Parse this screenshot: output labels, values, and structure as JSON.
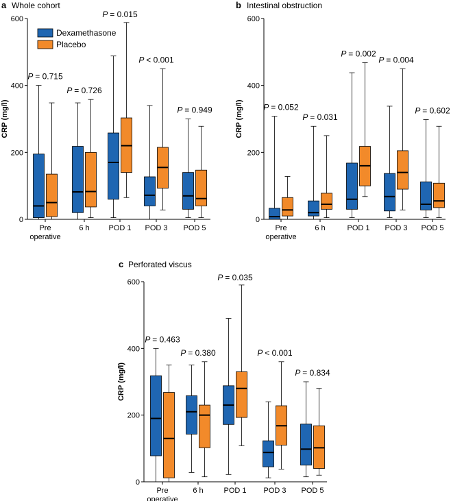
{
  "chart_data": [
    {
      "type": "boxplot",
      "panel_label": "a",
      "title": "Whole cohort",
      "ylabel": "CRP (mg/l)",
      "ylim": [
        0,
        600
      ],
      "yticks": [
        "0",
        "200",
        "400",
        "600"
      ],
      "categories": [
        "Pre operative",
        "6 h",
        "POD 1",
        "POD 3",
        "POD 5"
      ],
      "category_lines": [
        [
          "Pre",
          "operative"
        ],
        [
          "6 h"
        ],
        [
          "POD 1"
        ],
        [
          "POD 3"
        ],
        [
          "POD 5"
        ]
      ],
      "legend": [
        "Dexamethasone",
        "Placebo"
      ],
      "p_prefix": "P",
      "p_values": [
        "= 0.715",
        "= 0.726",
        "= 0.015",
        "< 0.001",
        "= 0.949"
      ],
      "series": [
        {
          "name": "Dexamethasone",
          "color": "#1f66b2",
          "boxes": [
            {
              "min": 0,
              "q1": 5,
              "median": 40,
              "q3": 195,
              "max": 400
            },
            {
              "min": 0,
              "q1": 20,
              "median": 82,
              "q3": 218,
              "max": 348
            },
            {
              "min": 5,
              "q1": 60,
              "median": 170,
              "q3": 258,
              "max": 488
            },
            {
              "min": 0,
              "q1": 40,
              "median": 72,
              "q3": 127,
              "max": 340
            },
            {
              "min": 5,
              "q1": 30,
              "median": 70,
              "q3": 140,
              "max": 300
            }
          ]
        },
        {
          "name": "Placebo",
          "color": "#f28a2a",
          "boxes": [
            {
              "min": 0,
              "q1": 8,
              "median": 50,
              "q3": 135,
              "max": 348
            },
            {
              "min": 5,
              "q1": 37,
              "median": 83,
              "q3": 200,
              "max": 358
            },
            {
              "min": 65,
              "q1": 140,
              "median": 220,
              "q3": 303,
              "max": 588
            },
            {
              "min": 28,
              "q1": 93,
              "median": 155,
              "q3": 215,
              "max": 450
            },
            {
              "min": 5,
              "q1": 40,
              "median": 62,
              "q3": 147,
              "max": 278
            }
          ]
        }
      ]
    },
    {
      "type": "boxplot",
      "panel_label": "b",
      "title": "Intestinal obstruction",
      "ylabel": "CRP (mg/l)",
      "ylim": [
        0,
        600
      ],
      "yticks": [
        "0",
        "200",
        "400",
        "600"
      ],
      "categories": [
        "Pre operative",
        "6 h",
        "POD 1",
        "POD 3",
        "POD 5"
      ],
      "category_lines": [
        [
          "Pre",
          "operative"
        ],
        [
          "6 h"
        ],
        [
          "POD 1"
        ],
        [
          "POD 3"
        ],
        [
          "POD 5"
        ]
      ],
      "p_prefix": "P",
      "p_values": [
        "= 0.052",
        "= 0.031",
        "= 0.002",
        "= 0.004",
        "= 0.602"
      ],
      "series": [
        {
          "name": "Dexamethasone",
          "color": "#1f66b2",
          "boxes": [
            {
              "min": 0,
              "q1": 0,
              "median": 8,
              "q3": 33,
              "max": 308
            },
            {
              "min": 0,
              "q1": 10,
              "median": 20,
              "q3": 55,
              "max": 278
            },
            {
              "min": 5,
              "q1": 30,
              "median": 60,
              "q3": 168,
              "max": 438
            },
            {
              "min": 5,
              "q1": 25,
              "median": 68,
              "q3": 137,
              "max": 338
            },
            {
              "min": 5,
              "q1": 28,
              "median": 45,
              "q3": 112,
              "max": 298
            }
          ]
        },
        {
          "name": "Placebo",
          "color": "#f28a2a",
          "boxes": [
            {
              "min": 0,
              "q1": 10,
              "median": 28,
              "q3": 65,
              "max": 128
            },
            {
              "min": 5,
              "q1": 30,
              "median": 45,
              "q3": 78,
              "max": 250
            },
            {
              "min": 68,
              "q1": 100,
              "median": 160,
              "q3": 218,
              "max": 468
            },
            {
              "min": 28,
              "q1": 90,
              "median": 140,
              "q3": 205,
              "max": 450
            },
            {
              "min": 5,
              "q1": 35,
              "median": 55,
              "q3": 108,
              "max": 278
            }
          ]
        }
      ]
    },
    {
      "type": "boxplot",
      "panel_label": "c",
      "title": "Perforated viscus",
      "ylabel": "CRP (mg/l)",
      "ylim": [
        0,
        600
      ],
      "yticks": [
        "0",
        "200",
        "400",
        "600"
      ],
      "categories": [
        "Pre operative",
        "6 h",
        "POD 1",
        "POD 3",
        "POD 5"
      ],
      "category_lines": [
        [
          "Pre",
          "operative"
        ],
        [
          "6 h"
        ],
        [
          "POD 1"
        ],
        [
          "POD 3"
        ],
        [
          "POD 5"
        ]
      ],
      "p_prefix": "P",
      "p_values": [
        "= 0.463",
        "= 0.380",
        "= 0.035",
        "< 0.001",
        "= 0.834"
      ],
      "series": [
        {
          "name": "Dexamethasone",
          "color": "#1f66b2",
          "boxes": [
            {
              "min": 0,
              "q1": 78,
              "median": 190,
              "q3": 318,
              "max": 400
            },
            {
              "min": 28,
              "q1": 143,
              "median": 210,
              "q3": 258,
              "max": 350
            },
            {
              "min": 22,
              "q1": 172,
              "median": 230,
              "q3": 288,
              "max": 490
            },
            {
              "min": 12,
              "q1": 45,
              "median": 88,
              "q3": 123,
              "max": 240
            },
            {
              "min": 15,
              "q1": 50,
              "median": 98,
              "q3": 173,
              "max": 300
            }
          ]
        },
        {
          "name": "Placebo",
          "color": "#f28a2a",
          "boxes": [
            {
              "min": 0,
              "q1": 12,
              "median": 130,
              "q3": 268,
              "max": 350
            },
            {
              "min": 15,
              "q1": 102,
              "median": 200,
              "q3": 230,
              "max": 360
            },
            {
              "min": 108,
              "q1": 193,
              "median": 280,
              "q3": 330,
              "max": 590
            },
            {
              "min": 38,
              "q1": 110,
              "median": 168,
              "q3": 228,
              "max": 360
            },
            {
              "min": 20,
              "q1": 40,
              "median": 102,
              "q3": 168,
              "max": 280
            }
          ]
        }
      ]
    }
  ]
}
